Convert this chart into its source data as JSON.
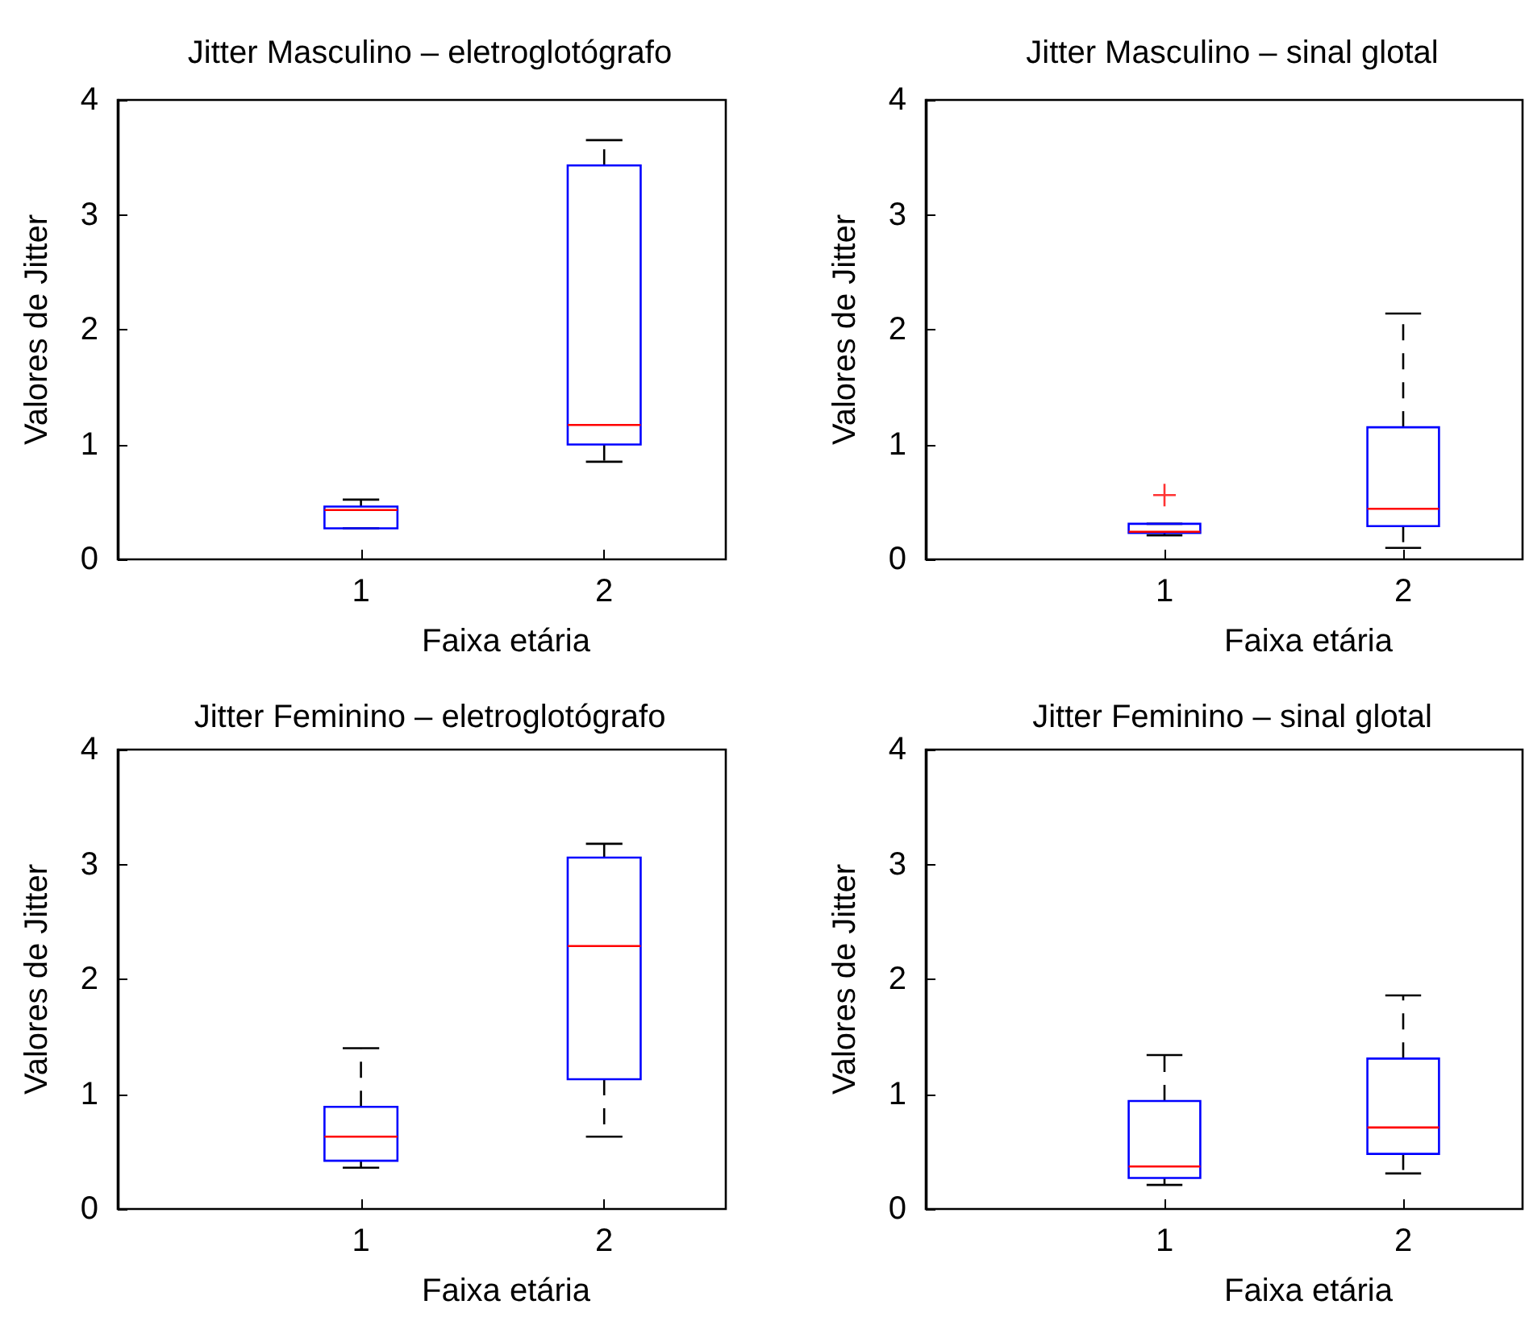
{
  "chart_data": [
    {
      "type": "box",
      "title": "Jitter Masculino – eletroglotógrafo",
      "xlabel": "Faixa etária",
      "ylabel": "Valores de Jitter",
      "categories": [
        "1",
        "2"
      ],
      "ylim": [
        0,
        4
      ],
      "yticks": [
        0,
        1,
        2,
        3,
        4
      ],
      "grid": false,
      "series": [
        {
          "color": "#0000ff",
          "boxes": [
            {
              "low": 0.27,
              "q1": 0.27,
              "median": 0.43,
              "q3": 0.46,
              "high": 0.52
            },
            {
              "low": 0.85,
              "q1": 1.0,
              "median": 1.17,
              "q3": 3.43,
              "high": 3.65
            }
          ]
        }
      ]
    },
    {
      "type": "box",
      "title": "Jitter Masculino – sinal glotal",
      "xlabel": "Faixa etária",
      "ylabel": "Valores de Jitter",
      "categories": [
        "1",
        "2"
      ],
      "ylim": [
        0,
        4
      ],
      "yticks": [
        0,
        1,
        2,
        3,
        4
      ],
      "grid": false,
      "series": [
        {
          "color": "#0000ff",
          "boxes": [
            {
              "low": 0.21,
              "q1": 0.23,
              "median": 0.24,
              "q3": 0.31,
              "high": 0.31,
              "outliers": [
                0.56
              ]
            },
            {
              "low": 0.1,
              "q1": 0.29,
              "median": 0.44,
              "q3": 1.15,
              "high": 2.14
            }
          ]
        }
      ]
    },
    {
      "type": "box",
      "title": "Jitter Feminino – eletroglotógrafo",
      "xlabel": "Faixa etária",
      "ylabel": "Valores de Jitter",
      "categories": [
        "1",
        "2"
      ],
      "ylim": [
        0,
        4
      ],
      "yticks": [
        0,
        1,
        2,
        3,
        4
      ],
      "grid": false,
      "series": [
        {
          "color": "#0000ff",
          "boxes": [
            {
              "low": 0.36,
              "q1": 0.42,
              "median": 0.63,
              "q3": 0.89,
              "high": 1.4
            },
            {
              "low": 0.63,
              "q1": 1.13,
              "median": 2.29,
              "q3": 3.06,
              "high": 3.18
            }
          ]
        }
      ]
    },
    {
      "type": "box",
      "title": "Jitter Feminino – sinal glotal",
      "xlabel": "Faixa etária",
      "ylabel": "Valores de Jitter",
      "categories": [
        "1",
        "2"
      ],
      "ylim": [
        0,
        4
      ],
      "yticks": [
        0,
        1,
        2,
        3,
        4
      ],
      "grid": false,
      "series": [
        {
          "color": "#0000ff",
          "boxes": [
            {
              "low": 0.21,
              "q1": 0.27,
              "median": 0.37,
              "q3": 0.94,
              "high": 1.34
            },
            {
              "low": 0.31,
              "q1": 0.48,
              "median": 0.71,
              "q3": 1.31,
              "high": 1.86
            }
          ]
        }
      ]
    }
  ]
}
